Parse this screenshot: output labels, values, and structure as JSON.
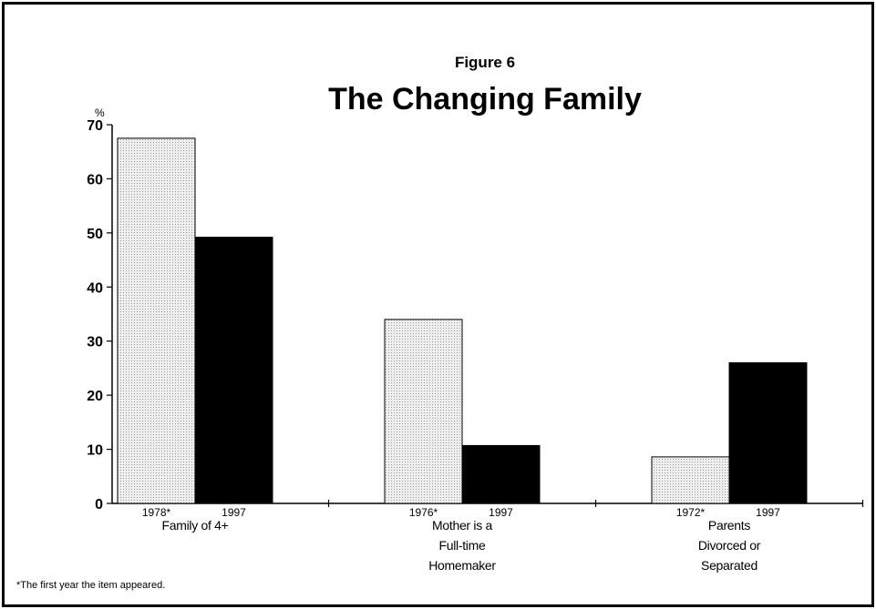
{
  "chart_data": {
    "type": "bar",
    "subtitle": "Figure 6",
    "title": "The Changing Family",
    "unit": "%",
    "categories": [
      "Family of 4+",
      "Mother is a\nFull-time\nHomemaker",
      "Parents\nDivorced or\nSeparated"
    ],
    "series": [
      {
        "labels": [
          "1978*",
          "1976*",
          "1972*"
        ],
        "color": "#e4e4e4",
        "values": [
          67.5,
          34,
          8.6
        ]
      },
      {
        "labels": [
          "1997",
          "1997",
          "1997"
        ],
        "color": "#000000",
        "values": [
          49.2,
          10.7,
          26
        ]
      }
    ],
    "ylim": [
      0,
      70
    ],
    "yticks": [
      0,
      10,
      20,
      30,
      40,
      50,
      60,
      70
    ],
    "footnote": "*The first year the item appeared."
  }
}
